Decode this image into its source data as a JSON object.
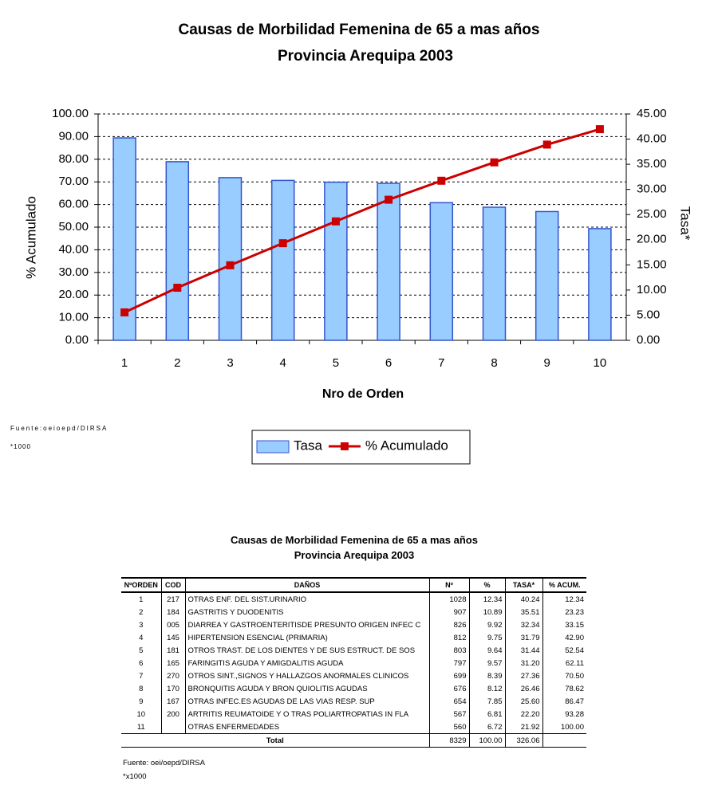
{
  "chart_data": {
    "type": "combo",
    "title": [
      "Causas de Morbilidad Femenina de 65 a mas años",
      "Provincia Arequipa 2003"
    ],
    "x_label": "Nro de Orden",
    "y_label": "% Acumulado",
    "y2_label": "Tasa*",
    "categories": [
      "1",
      "2",
      "3",
      "4",
      "5",
      "6",
      "7",
      "8",
      "9",
      "10"
    ],
    "series": [
      {
        "name": "Tasa",
        "type": "bar",
        "axis": "y2",
        "color": "#99ccff",
        "values": [
          40.24,
          35.51,
          32.34,
          31.79,
          31.44,
          31.2,
          27.36,
          26.46,
          25.6,
          22.2
        ]
      },
      {
        "name": "% Acumulado",
        "type": "line",
        "axis": "y",
        "color": "#cc0000",
        "values": [
          12.34,
          23.23,
          33.15,
          42.9,
          52.54,
          62.11,
          70.5,
          78.62,
          86.47,
          93.28
        ]
      }
    ],
    "ylim": [
      0,
      100
    ],
    "yticks": [
      {
        "value": 0,
        "label": "0.00"
      },
      {
        "value": 10,
        "label": "10.00"
      },
      {
        "value": 20,
        "label": "20.00"
      },
      {
        "value": 30,
        "label": "30.00"
      },
      {
        "value": 40,
        "label": "40.00"
      },
      {
        "value": 50,
        "label": "50.00"
      },
      {
        "value": 60,
        "label": "60.00"
      },
      {
        "value": 70,
        "label": "70.00"
      },
      {
        "value": 80,
        "label": "80.00"
      },
      {
        "value": 90,
        "label": "90.00"
      },
      {
        "value": 100,
        "label": "100.00"
      }
    ],
    "y2lim": [
      0,
      45
    ],
    "y2ticks": [
      {
        "value": 0,
        "label": "0.00"
      },
      {
        "value": 5,
        "label": "5.00"
      },
      {
        "value": 10,
        "label": "10.00"
      },
      {
        "value": 15,
        "label": "15.00"
      },
      {
        "value": 20,
        "label": "20.00"
      },
      {
        "value": 25,
        "label": "25.00"
      },
      {
        "value": 30,
        "label": "30.00"
      },
      {
        "value": 35,
        "label": "35.00"
      },
      {
        "value": 40,
        "label": "40.00"
      },
      {
        "value": 45,
        "label": "45.00"
      }
    ],
    "grid": true,
    "footnotes": [
      "Fuente:oeioepd/DIRSA",
      "*1000"
    ]
  },
  "table": {
    "title": [
      "Causas de Morbilidad Femenina de 65 a mas años",
      "Provincia Arequipa 2003"
    ],
    "header": [
      "NºORDEN",
      "COD",
      "DAÑOS",
      "Nº",
      "%",
      "TASA*",
      "% ACUM."
    ],
    "rows": [
      [
        "1",
        "217",
        "OTRAS ENF. DEL SIST.URINARIO",
        "1028",
        "12.34",
        "40.24",
        "12.34"
      ],
      [
        "2",
        "184",
        "GASTRITIS Y DUODENITIS",
        "907",
        "10.89",
        "35.51",
        "23.23"
      ],
      [
        "3",
        "005",
        "DIARREA Y GASTROENTERITISDE PRESUNTO ORIGEN INFEC C",
        "826",
        "9.92",
        "32.34",
        "33.15"
      ],
      [
        "4",
        "145",
        "HIPERTENSION ESENCIAL    (PRIMARIA)",
        "812",
        "9.75",
        "31.79",
        "42.90"
      ],
      [
        "5",
        "181",
        "OTROS TRAST. DE LOS DIENTES Y DE SUS ESTRUCT. DE SOS",
        "803",
        "9.64",
        "31.44",
        "52.54"
      ],
      [
        "6",
        "165",
        "FARINGITIS AGUDA Y AMIGDALITIS AGUDA",
        "797",
        "9.57",
        "31.20",
        "62.11"
      ],
      [
        "7",
        "270",
        "OTROS SINT.,SIGNOS Y HALLAZGOS ANORMALES CLINICOS",
        "699",
        "8.39",
        "27.36",
        "70.50"
      ],
      [
        "8",
        "170",
        "BRONQUITIS AGUDA Y BRON  QUIOLITIS AGUDAS",
        "676",
        "8.12",
        "26.46",
        "78.62"
      ],
      [
        "9",
        "167",
        "OTRAS INFEC.ES AGUDAS DE LAS VIAS RESP. SUP",
        "654",
        "7.85",
        "25.60",
        "86.47"
      ],
      [
        "10",
        "200",
        "ARTRITIS REUMATOIDE Y O  TRAS POLIARTROPATIAS IN  FLA",
        "567",
        "6.81",
        "22.20",
        "93.28"
      ],
      [
        "11",
        null,
        "OTRAS ENFERMEDADES",
        "560",
        "6.72",
        "21.92",
        "100.00"
      ]
    ],
    "total": {
      "label": "Total",
      "values": [
        "8329",
        "100.00",
        "326.06"
      ]
    },
    "footnotes": [
      "Fuente: oei/oepd/DIRSA",
      "*x1000"
    ]
  }
}
